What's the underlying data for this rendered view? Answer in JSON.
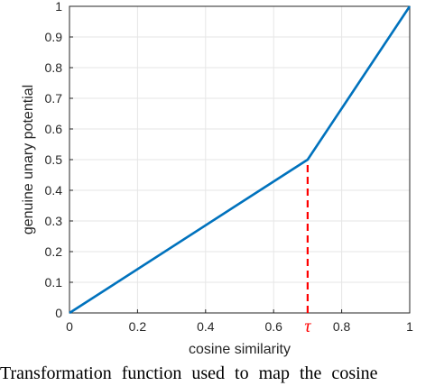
{
  "chart_data": {
    "type": "line",
    "title": "",
    "xlabel": "cosine similarity",
    "ylabel": "genuine unary potential",
    "xlim": [
      0,
      1
    ],
    "ylim": [
      0,
      1
    ],
    "grid": true,
    "xticks": [
      0,
      0.2,
      0.4,
      0.6,
      0.8,
      1
    ],
    "xtick_labels": [
      "0",
      "0.2",
      "0.4",
      "0.6",
      "0.8",
      "1"
    ],
    "yticks": [
      0,
      0.1,
      0.2,
      0.3,
      0.4,
      0.5,
      0.6,
      0.7,
      0.8,
      0.9,
      1
    ],
    "ytick_labels": [
      "0",
      "0.1",
      "0.2",
      "0.3",
      "0.4",
      "0.5",
      "0.6",
      "0.7",
      "0.8",
      "0.9",
      "1"
    ],
    "series": [
      {
        "x": [
          0,
          0.7,
          1
        ],
        "y": [
          0,
          0.5,
          1
        ],
        "color": "#0072BD"
      }
    ],
    "annotations": [
      {
        "type": "vertical-dashed-line",
        "x": 0.7,
        "y_from": 0,
        "y_to": 0.5,
        "color": "#FF0000",
        "label": "τ"
      }
    ]
  },
  "caption": "Transformation function used to map the cosine"
}
